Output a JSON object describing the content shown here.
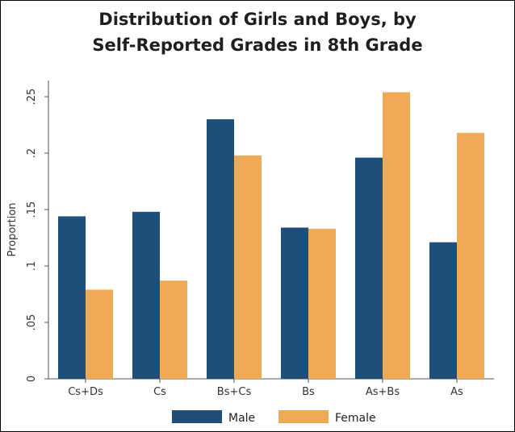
{
  "chart_data": {
    "type": "bar",
    "title_line1": "Distribution of Girls and Boys, by",
    "title_line2": "Self-Reported Grades in 8th Grade",
    "xlabel": "",
    "ylabel": "Proportion",
    "categories": [
      "Cs+Ds",
      "Cs",
      "Bs+Cs",
      "Bs",
      "As+Bs",
      "As"
    ],
    "series": [
      {
        "name": "Male",
        "color": "#1f4e79",
        "values": [
          0.144,
          0.148,
          0.23,
          0.134,
          0.196,
          0.121
        ]
      },
      {
        "name": "Female",
        "color": "#f0a954",
        "values": [
          0.079,
          0.087,
          0.198,
          0.133,
          0.254,
          0.218
        ]
      }
    ],
    "ylim": [
      0,
      0.25
    ],
    "yticks": [
      0,
      0.05,
      0.1,
      0.15,
      0.2,
      0.25
    ],
    "ytick_labels": [
      "0",
      ".05",
      ".1",
      ".15",
      ".2",
      ".25"
    ],
    "grid": false,
    "legend": "bottom"
  }
}
